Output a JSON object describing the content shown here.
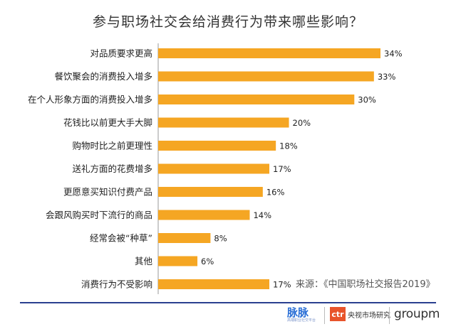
{
  "title": "参与职场社交会给消费行为带来哪些影响？",
  "source": "来源：《中国职场社交报告2019》",
  "logos": {
    "maimai_main": "脉脉",
    "maimai_sub": "高端职业社交平台",
    "ctr_badge": "ctr",
    "ctr_text": "央视市场研究",
    "groupm": "groupm"
  },
  "colors": {
    "bar": "#F5A623",
    "axis": "#999999",
    "footer_line": "#2a3f8f"
  },
  "chart_data": {
    "type": "bar",
    "orientation": "horizontal",
    "categories": [
      "对品质要求更高",
      "餐饮聚会的消费投入增多",
      "在个人形象方面的消费投入增多",
      "花钱比以前更大手大脚",
      "购物时比之前更理性",
      "送礼方面的花费增多",
      "更愿意买知识付费产品",
      "会跟风购买时下流行的商品",
      "经常会被“种草”",
      "其他",
      "消费行为不受影响"
    ],
    "values": [
      34,
      33,
      30,
      20,
      18,
      17,
      16,
      14,
      8,
      6,
      17
    ],
    "data_labels": [
      "34%",
      "33%",
      "30%",
      "20%",
      "18%",
      "17%",
      "16%",
      "14%",
      "8%",
      "6%",
      "17%"
    ],
    "unit": "%",
    "xlim": [
      0,
      34
    ],
    "grid": false,
    "legend": "none"
  }
}
